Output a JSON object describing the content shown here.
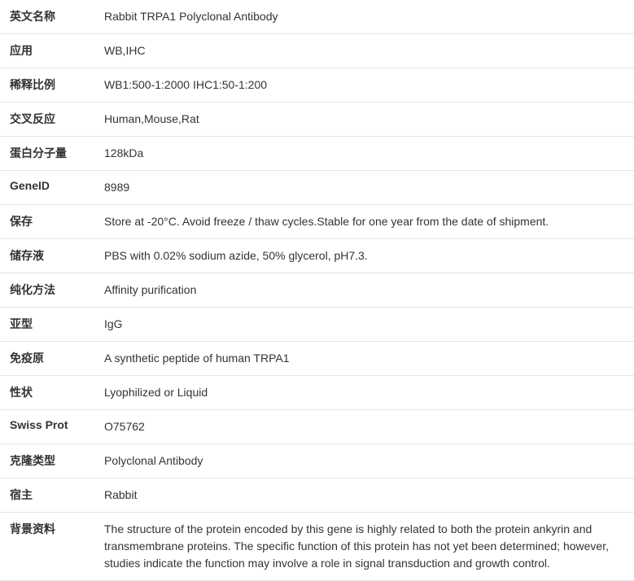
{
  "table": {
    "rows": [
      {
        "label": "英文名称",
        "value": "Rabbit TRPA1 Polyclonal Antibody"
      },
      {
        "label": "应用",
        "value": "WB,IHC"
      },
      {
        "label": "稀释比例",
        "value": "WB1:500-1:2000 IHC1:50-1:200"
      },
      {
        "label": "交叉反应",
        "value": "Human,Mouse,Rat"
      },
      {
        "label": "蛋白分子量",
        "value": "128kDa"
      },
      {
        "label": "GeneID",
        "value": "8989"
      },
      {
        "label": "保存",
        "value": "Store at -20°C. Avoid freeze / thaw cycles.Stable for one year from the date of shipment."
      },
      {
        "label": "储存液",
        "value": "PBS with 0.02% sodium azide, 50% glycerol, pH7.3."
      },
      {
        "label": "纯化方法",
        "value": "Affinity purification"
      },
      {
        "label": "亚型",
        "value": "IgG"
      },
      {
        "label": "免疫原",
        "value": "A synthetic peptide of human TRPA1"
      },
      {
        "label": "性状",
        "value": "Lyophilized or Liquid"
      },
      {
        "label": "Swiss Prot",
        "value": "O75762"
      },
      {
        "label": "克隆类型",
        "value": "Polyclonal Antibody"
      },
      {
        "label": "宿主",
        "value": "Rabbit"
      },
      {
        "label": "背景资料",
        "value": "The structure of the protein encoded by this gene is highly related to both the protein ankyrin and transmembrane proteins. The specific function of this protein has not yet been determined; however, studies indicate the function may involve a role in signal transduction and growth control."
      }
    ]
  }
}
